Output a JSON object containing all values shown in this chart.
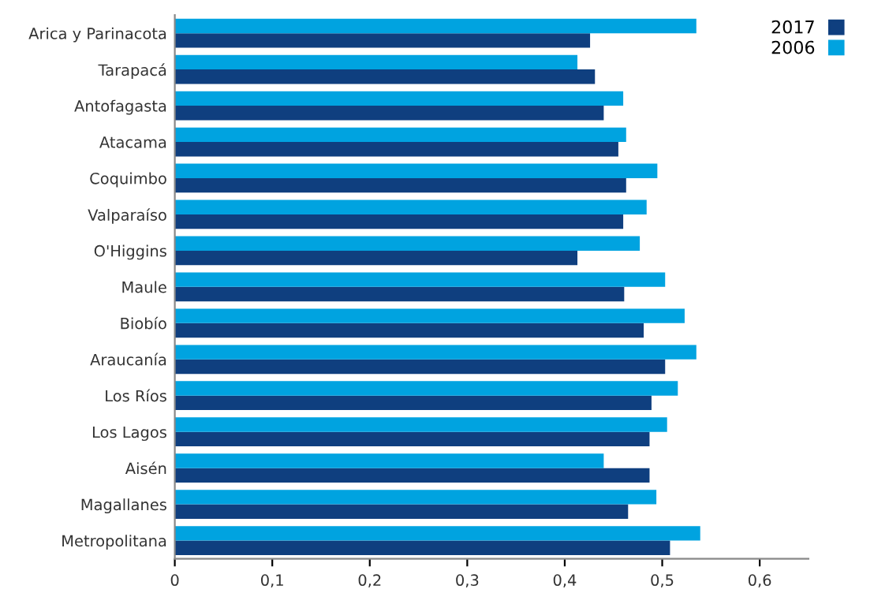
{
  "chart_data": {
    "type": "bar",
    "orientation": "horizontal",
    "categories": [
      "Arica y Parinacota",
      "Tarapacá",
      "Antofagasta",
      "Atacama",
      "Coquimbo",
      "Valparaíso",
      "O'Higgins",
      "Maule",
      "Biobío",
      "Araucanía",
      "Los Ríos",
      "Los Lagos",
      "Aisén",
      "Magallanes",
      "Metropolitana"
    ],
    "series": [
      {
        "name": "2017",
        "color": "#0f3f7f",
        "values": [
          0.426,
          0.431,
          0.44,
          0.455,
          0.463,
          0.46,
          0.413,
          0.461,
          0.481,
          0.503,
          0.489,
          0.487,
          0.487,
          0.465,
          0.508
        ]
      },
      {
        "name": "2006",
        "color": "#00a3e0",
        "values": [
          0.535,
          0.413,
          0.46,
          0.463,
          0.495,
          0.484,
          0.477,
          0.503,
          0.523,
          0.535,
          0.516,
          0.505,
          0.44,
          0.494,
          0.539
        ]
      }
    ],
    "xlim": [
      0,
      0.65
    ],
    "xticks": [
      {
        "value": 0,
        "label": "0"
      },
      {
        "value": 0.1,
        "label": "0,1"
      },
      {
        "value": 0.2,
        "label": "0,2"
      },
      {
        "value": 0.3,
        "label": "0,3"
      },
      {
        "value": 0.4,
        "label": "0,4"
      },
      {
        "value": 0.5,
        "label": "0,5"
      },
      {
        "value": 0.6,
        "label": "0,6"
      }
    ],
    "grid": false,
    "legend": "top right"
  }
}
